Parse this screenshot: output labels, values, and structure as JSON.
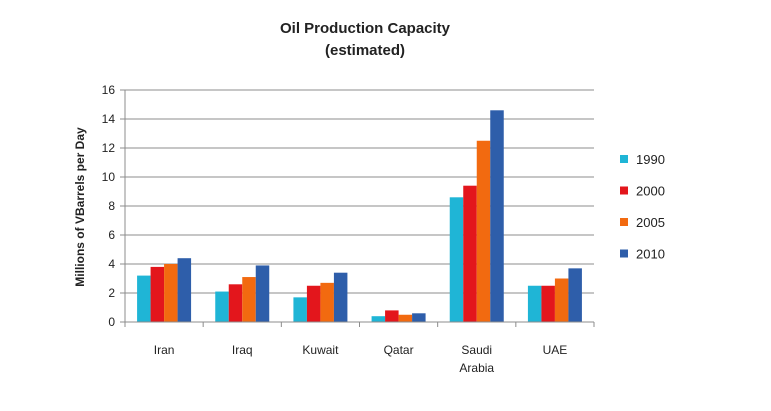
{
  "chart_data": {
    "type": "bar",
    "title": "Oil Production Capacity",
    "subtitle": "(estimated)",
    "xlabel": "",
    "ylabel": "Millions of VBarrels per Day",
    "ylim": [
      0,
      16
    ],
    "yticks": [
      0,
      2,
      4,
      6,
      8,
      10,
      12,
      14,
      16
    ],
    "grid": true,
    "legend_position": "right",
    "categories": [
      "Iran",
      "Iraq",
      "Kuwait",
      "Qatar",
      "Saudi Arabia",
      "UAE"
    ],
    "category_lines": [
      [
        "Iran"
      ],
      [
        "Iraq"
      ],
      [
        "Kuwait"
      ],
      [
        "Qatar"
      ],
      [
        "Saudi",
        "Arabia"
      ],
      [
        "UAE"
      ]
    ],
    "series": [
      {
        "name": "1990",
        "color": "#1fb5d6",
        "values": [
          3.2,
          2.1,
          1.7,
          0.4,
          8.6,
          2.5
        ]
      },
      {
        "name": "2000",
        "color": "#e3161c",
        "values": [
          3.8,
          2.6,
          2.5,
          0.8,
          9.4,
          2.5
        ]
      },
      {
        "name": "2005",
        "color": "#f26a10",
        "values": [
          4.0,
          3.1,
          2.7,
          0.5,
          12.5,
          3.0
        ]
      },
      {
        "name": "2010",
        "color": "#2e5eaa",
        "values": [
          4.4,
          3.9,
          3.4,
          0.6,
          14.6,
          3.7
        ]
      }
    ]
  }
}
